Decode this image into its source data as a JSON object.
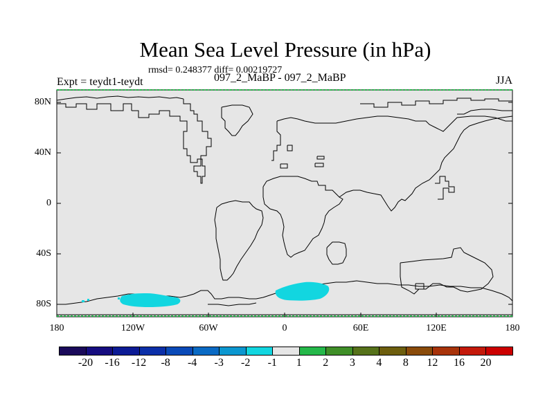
{
  "title": "Mean Sea Level Pressure (in hPa)",
  "stats": "rmsd= 0.248377 diff= 0.00219727",
  "left_label": "Expt = teydt1-teydt",
  "center_label": "097_2_MaBP - 097_2_MaBP",
  "right_label": "JJA",
  "lat_labels": [
    "80N",
    "40N",
    "0",
    "40S",
    "80S"
  ],
  "lon_labels": [
    "180",
    "120W",
    "60W",
    "0",
    "60E",
    "120E",
    "180"
  ],
  "colorbar": {
    "labels": [
      "-20",
      "-16",
      "-12",
      "-8",
      "-4",
      "-3",
      "-2",
      "-1",
      "1",
      "2",
      "3",
      "4",
      "8",
      "12",
      "16",
      "20"
    ],
    "colors": [
      "#1a0a5a",
      "#160d80",
      "#0c1b95",
      "#0b2fa8",
      "#0a4ab8",
      "#0a6ac4",
      "#0b97d0",
      "#12d6e0",
      "#e6e6e6",
      "#25b84a",
      "#3f8f28",
      "#56721a",
      "#6d5e0e",
      "#8a4b0a",
      "#a8330a",
      "#c4190a",
      "#cc0000"
    ]
  },
  "map": {
    "background_color": "#e6e6e6",
    "anomaly_color": "#12d6e0",
    "coast_color": "#000000"
  }
}
